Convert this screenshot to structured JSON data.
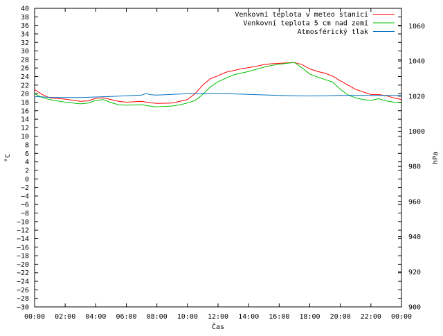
{
  "chart_data": {
    "type": "line",
    "xlabel": "Čas",
    "ylabel": "°C",
    "y2label": "hPa",
    "x_ticks": [
      "00:00",
      "02:00",
      "04:00",
      "06:00",
      "08:00",
      "10:00",
      "12:00",
      "14:00",
      "16:00",
      "18:00",
      "20:00",
      "22:00",
      "00:00"
    ],
    "xlim": [
      0,
      24
    ],
    "ylim": [
      -30,
      40
    ],
    "y_ticks": [
      -30,
      -28,
      -26,
      -24,
      -22,
      -20,
      -18,
      -16,
      -14,
      -12,
      -10,
      -8,
      -6,
      -4,
      -2,
      0,
      2,
      4,
      6,
      8,
      10,
      12,
      14,
      16,
      18,
      20,
      22,
      24,
      26,
      28,
      30,
      32,
      34,
      36,
      38,
      40
    ],
    "y2lim": [
      900,
      1070
    ],
    "y2_ticks": [
      900,
      920,
      940,
      960,
      980,
      1000,
      1020,
      1040,
      1060
    ],
    "legend_position": "top-right",
    "grid": false,
    "series": [
      {
        "name": "Venkovní teplota v meteo stanici",
        "color": "#ff0000",
        "axis": "left",
        "x": [
          0,
          0.2,
          0.5,
          1,
          2,
          3,
          3.5,
          4,
          4.5,
          5,
          5.5,
          6,
          7,
          7.5,
          8,
          9,
          9.5,
          10,
          10.5,
          11,
          11.5,
          12,
          12.5,
          13,
          13.5,
          14,
          14.5,
          15,
          15.5,
          16,
          16.5,
          17,
          17.5,
          18,
          18.5,
          19,
          19.5,
          20,
          20.5,
          21,
          21.5,
          22,
          22.5,
          23,
          23.5,
          24
        ],
        "y": [
          21,
          20.5,
          19.8,
          19,
          18.7,
          18.2,
          18.3,
          18.9,
          19,
          18.6,
          18.2,
          18,
          18.2,
          17.9,
          17.7,
          17.8,
          18.2,
          18.6,
          20,
          22,
          23.5,
          24.2,
          25,
          25.4,
          25.8,
          26.1,
          26.4,
          26.8,
          27,
          27.1,
          27.2,
          27.3,
          26.8,
          25.8,
          25.2,
          24.8,
          24.1,
          23,
          22,
          21,
          20.4,
          19.8,
          19.8,
          19.5,
          19,
          18.6
        ]
      },
      {
        "name": "Venkovní teplota 5 cm nad zemí",
        "color": "#00c000",
        "axis": "left",
        "x": [
          0,
          0.2,
          0.5,
          1,
          2,
          3,
          3.5,
          4,
          4.5,
          5,
          5.5,
          6,
          7,
          7.5,
          8,
          9,
          9.5,
          10,
          10.5,
          11,
          11.5,
          12,
          12.5,
          13,
          13.5,
          14,
          14.5,
          15,
          15.5,
          16,
          16.5,
          17,
          17.5,
          18,
          18.5,
          19,
          19.5,
          20,
          20.5,
          21,
          21.5,
          22,
          22.5,
          23,
          23.5,
          24
        ],
        "y": [
          20,
          19.6,
          19.1,
          18.6,
          18,
          17.6,
          17.8,
          18.4,
          18.6,
          17.9,
          17.4,
          17.3,
          17.4,
          17.1,
          16.9,
          17.1,
          17.4,
          17.8,
          18.4,
          19.8,
          21.6,
          22.8,
          23.6,
          24.4,
          24.8,
          25.2,
          25.7,
          26.2,
          26.6,
          26.9,
          27.1,
          27.3,
          26,
          24.6,
          23.9,
          23.3,
          22.7,
          21,
          19.7,
          19,
          18.6,
          18.4,
          18.8,
          18.3,
          18,
          17.9
        ]
      },
      {
        "name": "Atmosférický tlak",
        "color": "#0070c0",
        "axis": "right",
        "x": [
          0,
          1,
          2,
          3,
          4,
          5,
          6,
          7,
          7.3,
          7.6,
          8,
          9,
          10,
          11,
          12,
          13,
          14,
          15,
          16,
          17,
          18,
          19,
          20,
          21,
          22,
          23,
          24
        ],
        "y": [
          1019.8,
          1019.3,
          1019.2,
          1019.2,
          1019.5,
          1019.8,
          1020.2,
          1020.6,
          1021.5,
          1020.8,
          1020.6,
          1021.0,
          1021.4,
          1021.6,
          1021.6,
          1021.3,
          1021.0,
          1020.7,
          1020.4,
          1020.2,
          1020.1,
          1020.2,
          1020.4,
          1020.4,
          1020.4,
          1020.4,
          1020.3
        ]
      }
    ]
  }
}
